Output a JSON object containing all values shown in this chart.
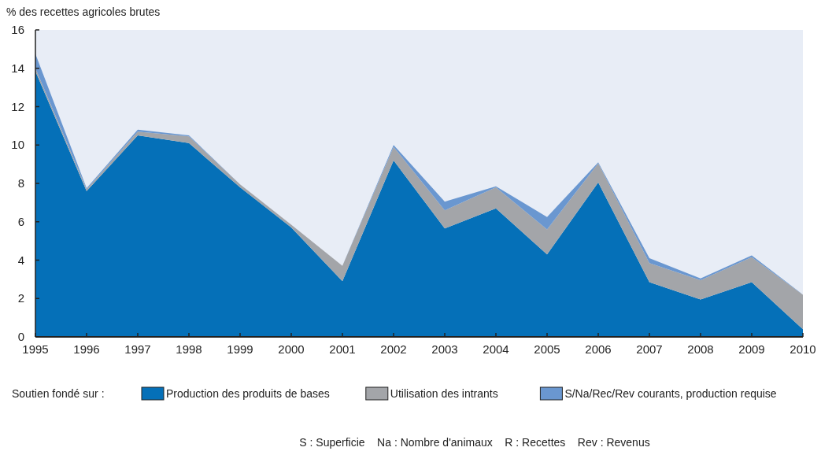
{
  "chart_data": {
    "type": "area",
    "stacked": true,
    "ylabel": "% des recettes agricoles brutes",
    "legend_title": "Soutien fondé sur :",
    "legend": "bottom",
    "grid": false,
    "x": [
      1995,
      1996,
      1997,
      1998,
      1999,
      2000,
      2001,
      2002,
      2003,
      2004,
      2005,
      2006,
      2007,
      2008,
      2009,
      2010
    ],
    "xlim": [
      1995,
      2010
    ],
    "xticks": [
      1995,
      1996,
      1997,
      1998,
      1999,
      2000,
      2001,
      2002,
      2003,
      2004,
      2005,
      2006,
      2007,
      2008,
      2009,
      2010
    ],
    "ylim": [
      0,
      16
    ],
    "yticks": [
      0,
      2,
      4,
      6,
      8,
      10,
      12,
      14,
      16
    ],
    "series": [
      {
        "name": "Production des produits de bases",
        "color": "#0570b8",
        "values": [
          13.85,
          7.6,
          10.5,
          10.1,
          7.8,
          5.7,
          2.9,
          9.2,
          5.65,
          6.7,
          4.3,
          8.05,
          2.85,
          1.95,
          2.85,
          0.4
        ]
      },
      {
        "name": "Utilisation des intrants",
        "color": "#a3a5a9",
        "values": [
          0.15,
          0.1,
          0.2,
          0.35,
          0.15,
          0.15,
          0.8,
          0.7,
          0.95,
          1.1,
          1.3,
          1.0,
          1.0,
          1.0,
          1.3,
          1.8
        ]
      },
      {
        "name": "S/Na/Rec/Rev courants, production requise",
        "color": "#6a97d0",
        "values": [
          0.75,
          0.05,
          0.1,
          0.05,
          0,
          0,
          0,
          0.1,
          0.45,
          0.05,
          0.65,
          0.05,
          0.25,
          0.1,
          0.1,
          0
        ]
      }
    ],
    "annotations": [
      "S : Superficie    Na : Nombre d'animaux    R : Recettes    Rev : Revenus"
    ]
  }
}
